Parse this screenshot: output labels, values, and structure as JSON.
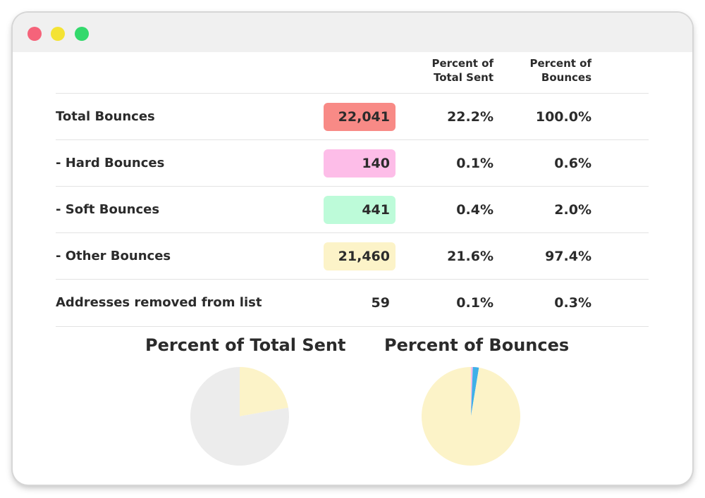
{
  "window": {
    "buttons": [
      "close",
      "minimize",
      "maximize"
    ],
    "colors": {
      "close": "#f5637a",
      "minimize": "#f4e334",
      "maximize": "#33d96c"
    }
  },
  "table": {
    "headers": {
      "percent_of_total_sent": [
        "Percent of",
        "Total Sent"
      ],
      "percent_of_bounces": [
        "Percent of",
        "Bounces"
      ]
    },
    "rows": [
      {
        "label": "Total Bounces",
        "count": "22,041",
        "percent_total_sent": "22.2%",
        "percent_bounces": "100.0%",
        "badge_color": "#f88a86"
      },
      {
        "label": "-  Hard Bounces",
        "count": "140",
        "percent_total_sent": "0.1%",
        "percent_bounces": "0.6%",
        "badge_color": "#fdbde8"
      },
      {
        "label": "-  Soft Bounces",
        "count": "441",
        "percent_total_sent": "0.4%",
        "percent_bounces": "2.0%",
        "badge_color": "#bdfbd9"
      },
      {
        "label": "-  Other Bounces",
        "count": "21,460",
        "percent_total_sent": "21.6%",
        "percent_bounces": "97.4%",
        "badge_color": "#fcf3c8"
      },
      {
        "label": "Addresses removed from list",
        "count": "59",
        "percent_total_sent": "0.1%",
        "percent_bounces": "0.3%",
        "badge_color": ""
      }
    ]
  },
  "chart_data": [
    {
      "type": "pie",
      "title": "Percent of Total Sent",
      "slices": [
        {
          "name": "Total Bounces",
          "value": 22.2,
          "color": "#fcf3c8"
        },
        {
          "name": "",
          "value": 77.8,
          "color": "#ececec"
        }
      ]
    },
    {
      "type": "pie",
      "title": "Percent of Bounces",
      "slices": [
        {
          "name": "Hard Bounces",
          "value": 0.6,
          "color": "#fdbde8"
        },
        {
          "name": "Soft Bounces",
          "value": 2.0,
          "color": "#3fb0e8"
        },
        {
          "name": "Other Bounces",
          "value": 97.4,
          "color": "#fcf3c8"
        }
      ]
    }
  ]
}
